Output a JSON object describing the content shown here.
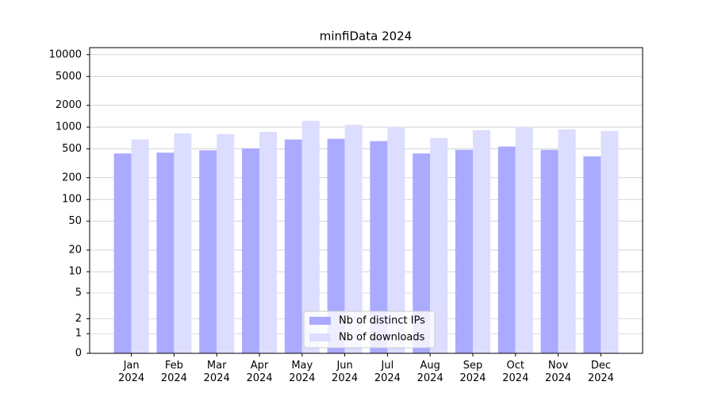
{
  "chart_data": {
    "type": "bar",
    "title": "minfiData 2024",
    "categories": [
      "Jan\n2024",
      "Feb\n2024",
      "Mar\n2024",
      "Apr\n2024",
      "May\n2024",
      "Jun\n2024",
      "Jul\n2024",
      "Aug\n2024",
      "Sep\n2024",
      "Oct\n2024",
      "Nov\n2024",
      "Dec\n2024"
    ],
    "series": [
      {
        "name": "Nb of distinct IPs",
        "color": "#aaaaff",
        "values": [
          432,
          443,
          477,
          508,
          673,
          690,
          640,
          432,
          485,
          538,
          485,
          393
        ]
      },
      {
        "name": "Nb of downloads",
        "color": "#ddddff",
        "values": [
          673,
          820,
          800,
          861,
          1219,
          1075,
          1000,
          707,
          906,
          1000,
          929,
          884
        ]
      }
    ],
    "yscale": "asinh",
    "linear_width": 1.5,
    "ylim": [
      0,
      12500
    ],
    "yticks": [
      0,
      1,
      2,
      5,
      10,
      20,
      50,
      100,
      200,
      500,
      1000,
      2000,
      5000,
      10000
    ],
    "grid": true,
    "legend": "lower center"
  }
}
